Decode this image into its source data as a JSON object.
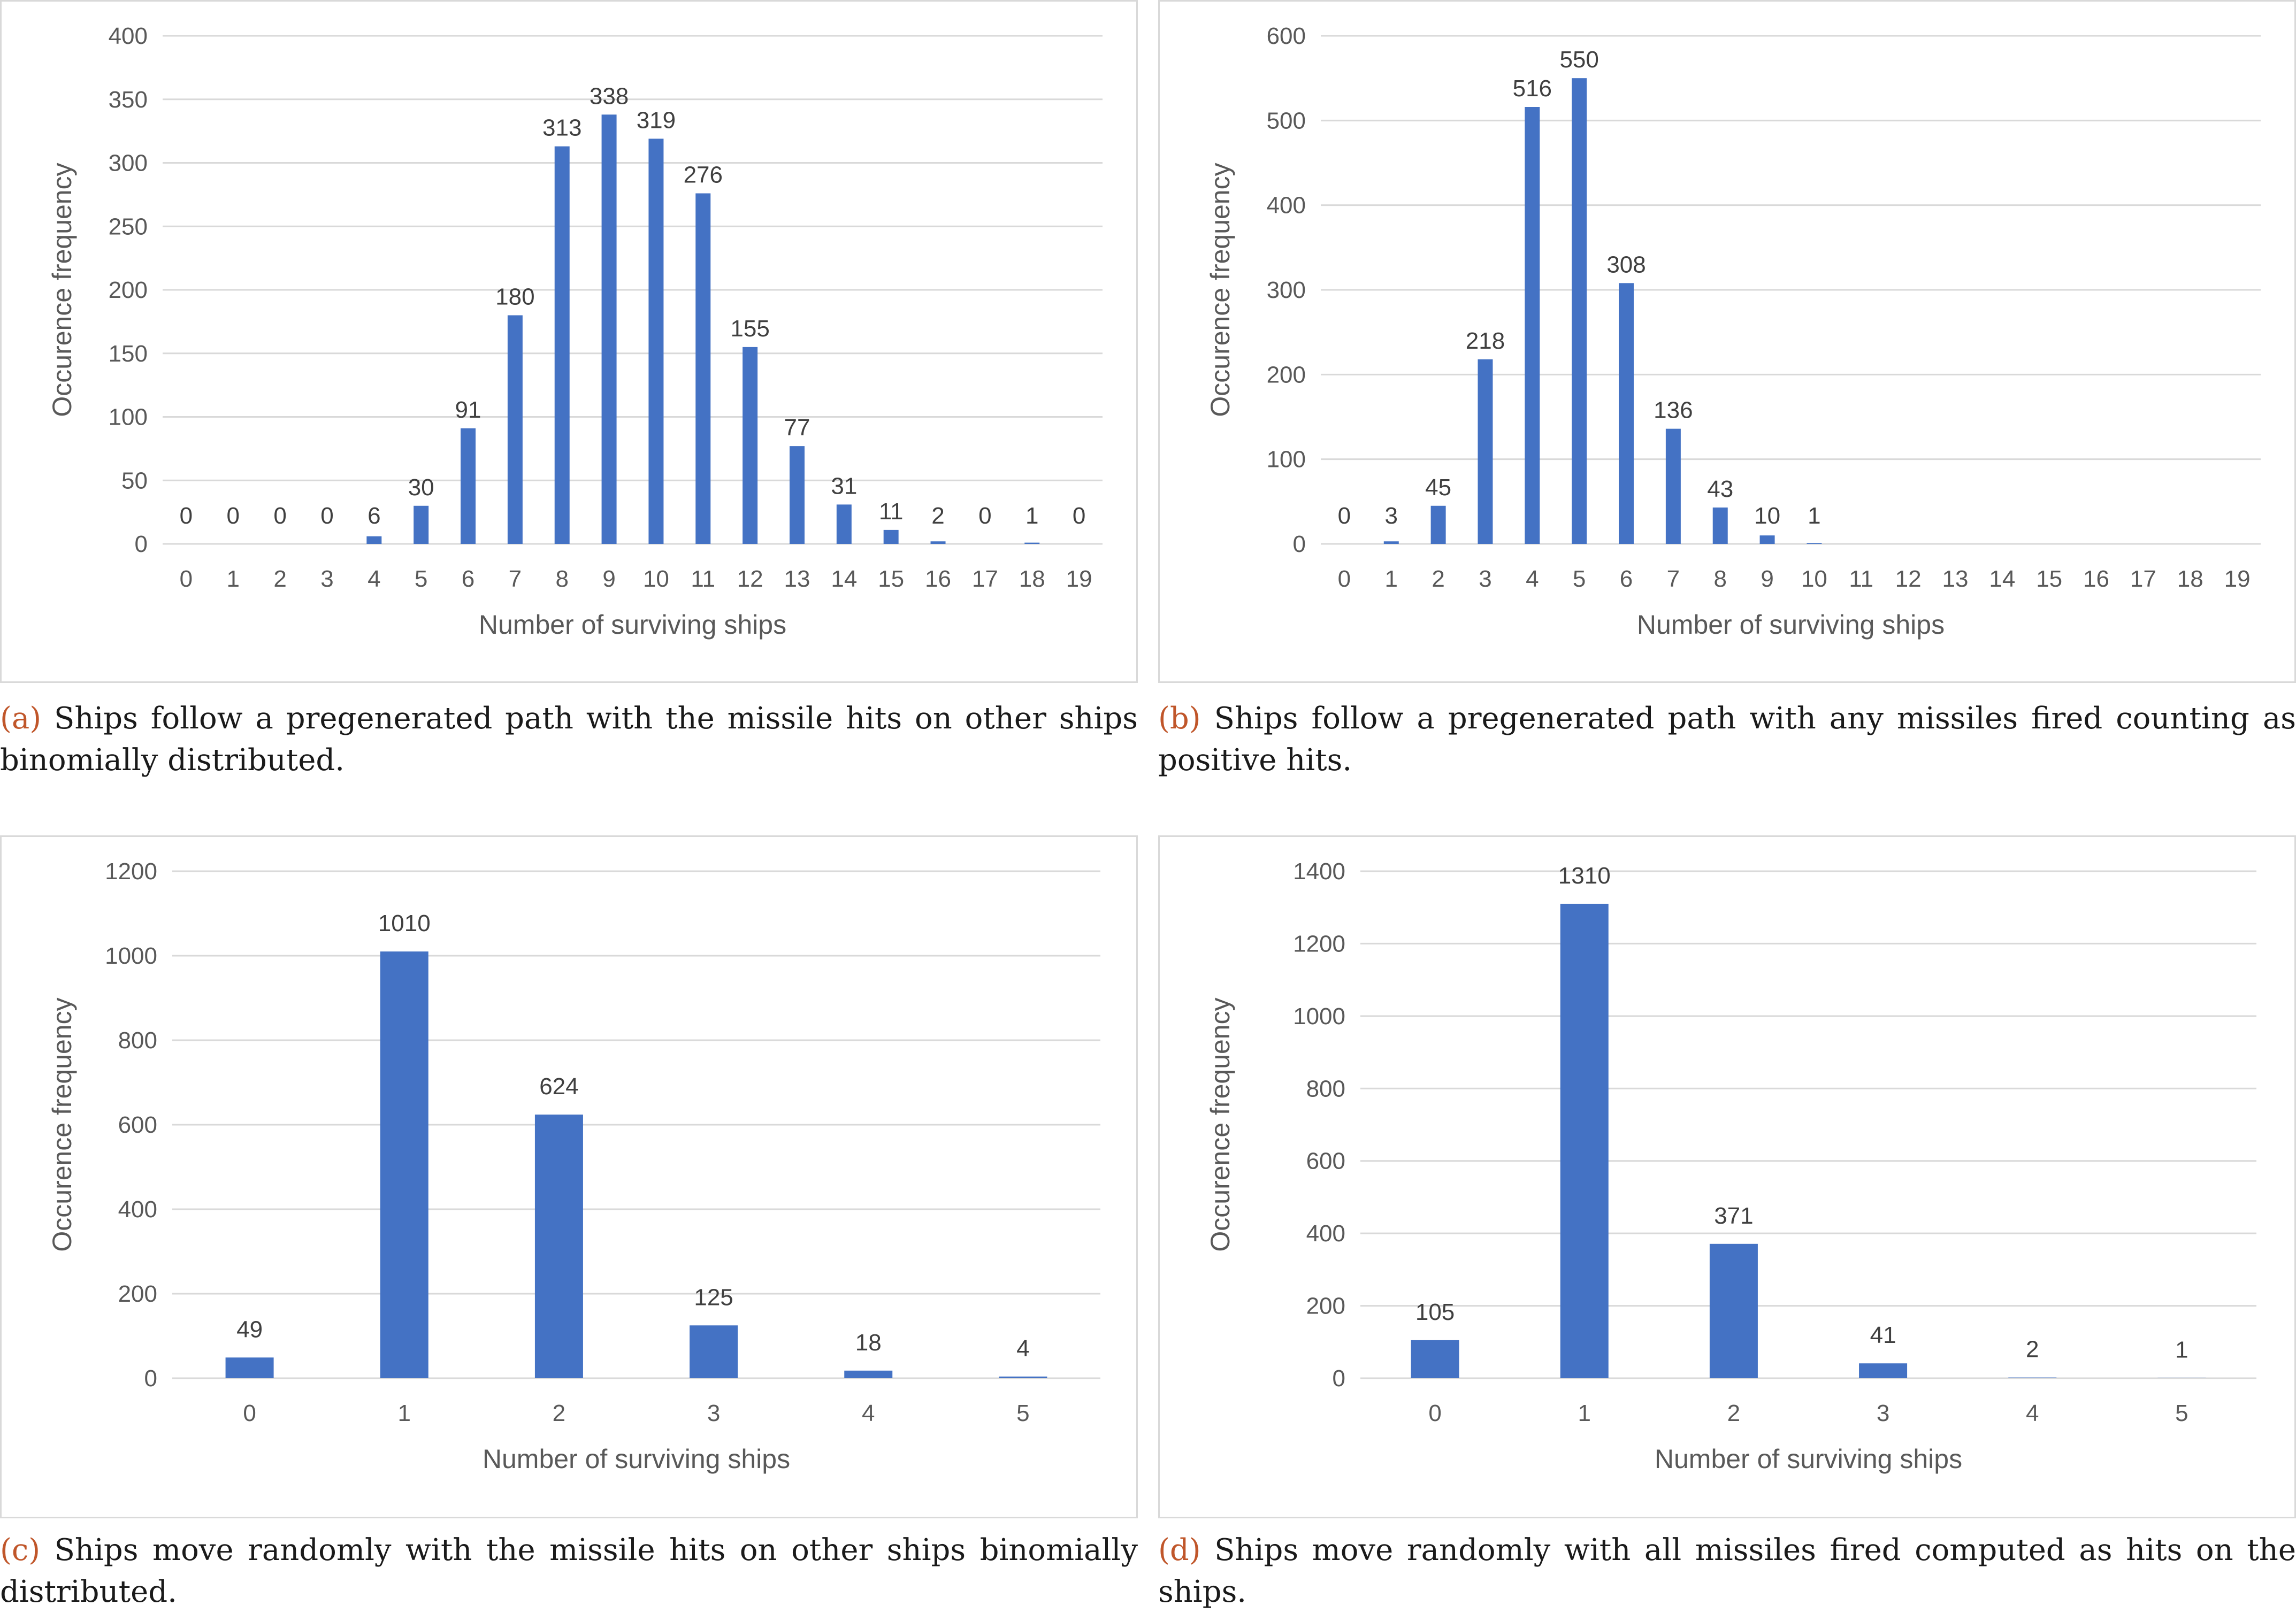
{
  "figures": [
    {
      "id": "a",
      "caption_label": "(a)",
      "caption_text": "Ships follow a pregenerated path with the missile hits on other ships binomially distributed."
    },
    {
      "id": "b",
      "caption_label": "(b)",
      "caption_text": "Ships follow a pregenerated path with any missiles fired counting as positive hits."
    },
    {
      "id": "c",
      "caption_label": "(c)",
      "caption_text": "Ships move randomly with the missile hits on other ships binomially distributed."
    },
    {
      "id": "d",
      "caption_label": "(d)",
      "caption_text": "Ships move randomly with all missiles fired computed as hits on the ships."
    }
  ],
  "chart_data": [
    {
      "type": "bar",
      "title": "",
      "xlabel": "Number of surviving ships",
      "ylabel": "Occurence frequency",
      "categories": [
        "0",
        "1",
        "2",
        "3",
        "4",
        "5",
        "6",
        "7",
        "8",
        "9",
        "10",
        "11",
        "12",
        "13",
        "14",
        "15",
        "16",
        "17",
        "18",
        "19"
      ],
      "values": [
        0,
        0,
        0,
        0,
        6,
        30,
        91,
        180,
        313,
        338,
        319,
        276,
        155,
        77,
        31,
        11,
        2,
        0,
        1,
        0
      ],
      "ylim": [
        0,
        400
      ],
      "yticks": [
        0,
        50,
        100,
        150,
        200,
        250,
        300,
        350,
        400
      ],
      "grid": true,
      "color": "#4472c4"
    },
    {
      "type": "bar",
      "title": "",
      "xlabel": "Number of surviving ships",
      "ylabel": "Occurence frequency",
      "categories": [
        "0",
        "1",
        "2",
        "3",
        "4",
        "5",
        "6",
        "7",
        "8",
        "9",
        "10",
        "11",
        "12",
        "13",
        "14",
        "15",
        "16",
        "17",
        "18",
        "19"
      ],
      "values": [
        0,
        3,
        45,
        218,
        516,
        550,
        308,
        136,
        43,
        10,
        1,
        null,
        null,
        null,
        null,
        null,
        null,
        null,
        null,
        null
      ],
      "ylim": [
        0,
        600
      ],
      "yticks": [
        0,
        100,
        200,
        300,
        400,
        500,
        600
      ],
      "grid": true,
      "color": "#4472c4"
    },
    {
      "type": "bar",
      "title": "",
      "xlabel": "Number of surviving ships",
      "ylabel": "Occurence frequency",
      "categories": [
        "0",
        "1",
        "2",
        "3",
        "4",
        "5"
      ],
      "values": [
        49,
        1010,
        624,
        125,
        18,
        4
      ],
      "ylim": [
        0,
        1200
      ],
      "yticks": [
        0,
        200,
        400,
        600,
        800,
        1000,
        1200
      ],
      "grid": true,
      "color": "#4472c4"
    },
    {
      "type": "bar",
      "title": "",
      "xlabel": "Number of surviving ships",
      "ylabel": "Occurence frequency",
      "categories": [
        "0",
        "1",
        "2",
        "3",
        "4",
        "5"
      ],
      "values": [
        105,
        1310,
        371,
        41,
        2,
        1
      ],
      "ylim": [
        0,
        1400
      ],
      "yticks": [
        0,
        200,
        400,
        600,
        800,
        1000,
        1200,
        1400
      ],
      "grid": true,
      "color": "#4472c4"
    }
  ]
}
